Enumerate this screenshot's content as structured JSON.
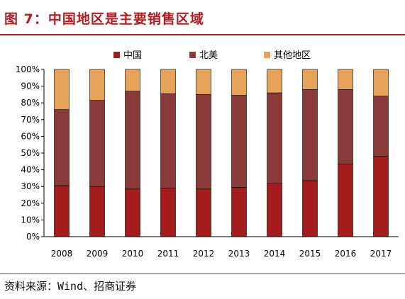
{
  "figure": {
    "title": "图 7：中国地区是主要销售区域",
    "source": "资料来源：Wind、招商证券"
  },
  "chart_data": {
    "type": "bar",
    "stacked": true,
    "categories": [
      "2008",
      "2009",
      "2010",
      "2011",
      "2012",
      "2013",
      "2014",
      "2015",
      "2016",
      "2017"
    ],
    "series": [
      {
        "name": "中国",
        "color": "#a51c1c",
        "values": [
          30.5,
          30,
          28.5,
          29,
          28.5,
          29.5,
          31.5,
          33.5,
          43.5,
          48
        ]
      },
      {
        "name": "北美",
        "color": "#8b3a3a",
        "values": [
          45.5,
          51.5,
          58.5,
          56.5,
          56.5,
          55,
          54.5,
          54.5,
          44.5,
          36
        ]
      },
      {
        "name": "其他地区",
        "color": "#e8a35a",
        "values": [
          24,
          18.5,
          13,
          14.5,
          15,
          15.5,
          14,
          12,
          12,
          16
        ]
      }
    ],
    "ylim": [
      0,
      100
    ],
    "yticks": [
      "0%",
      "10%",
      "20%",
      "30%",
      "40%",
      "50%",
      "60%",
      "70%",
      "80%",
      "90%",
      "100%"
    ],
    "legend_position": "top-center",
    "grid": false
  }
}
